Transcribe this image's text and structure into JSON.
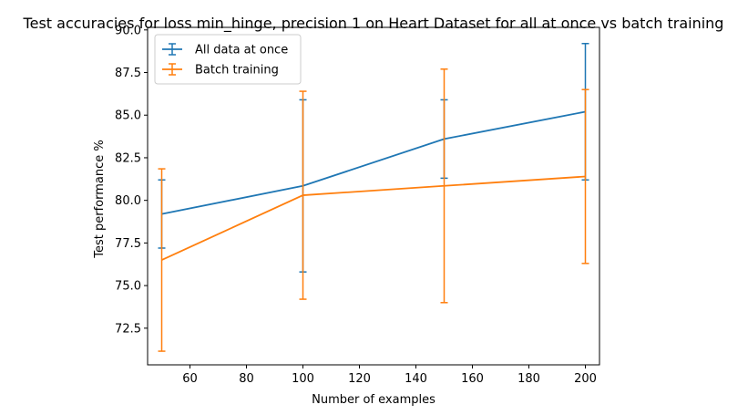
{
  "chart_data": {
    "type": "line",
    "title": "Test accuracies for loss min_hinge, precision 1 on Heart Dataset for all at once vs batch training",
    "xlabel": "Number of examples",
    "ylabel": "Test performance %",
    "xlim": [
      45,
      205
    ],
    "ylim": [
      70.35,
      90.15
    ],
    "x_ticks": [
      60,
      80,
      100,
      120,
      140,
      160,
      180,
      200
    ],
    "y_ticks": [
      72.5,
      75.0,
      77.5,
      80.0,
      82.5,
      85.0,
      87.5,
      90.0
    ],
    "x_tick_labels": [
      "60",
      "80",
      "100",
      "120",
      "140",
      "160",
      "180",
      "200"
    ],
    "y_tick_labels": [
      "72.5",
      "75.0",
      "77.5",
      "80.0",
      "82.5",
      "85.0",
      "87.5",
      "90.0"
    ],
    "grid": false,
    "legend_position": "upper-left",
    "series": [
      {
        "name": "All data at once",
        "color": "#1f77b4",
        "x": [
          50,
          100,
          150,
          200
        ],
        "y": [
          79.2,
          80.85,
          83.6,
          85.2
        ],
        "yerr": [
          2.0,
          5.05,
          2.3,
          4.0
        ]
      },
      {
        "name": "Batch training",
        "color": "#ff7f0e",
        "x": [
          50,
          100,
          150,
          200
        ],
        "y": [
          76.5,
          80.3,
          80.85,
          81.4
        ],
        "yerr": [
          5.35,
          6.1,
          6.85,
          5.1
        ]
      }
    ]
  }
}
